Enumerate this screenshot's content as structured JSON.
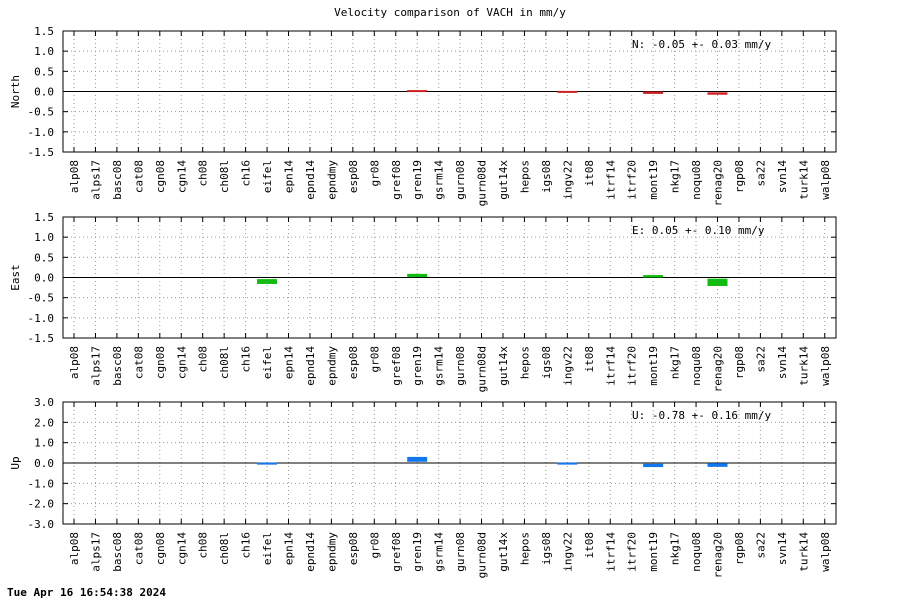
{
  "chart_data": {
    "title": "Velocity comparison of VACH in mm/y",
    "footer": "Tue Apr 16 16:54:38 2024",
    "type": "bar",
    "categories": [
      "alp08",
      "alps17",
      "basc08",
      "cat08",
      "cgn08",
      "cgn14",
      "ch08",
      "ch08l",
      "ch16",
      "eifel",
      "epn14",
      "epnd14",
      "epndmy",
      "esp08",
      "gr08",
      "gref08",
      "gren19",
      "gsrm14",
      "gurn08",
      "gurn08d",
      "gut14x",
      "hepos",
      "igs08",
      "ingv22",
      "it08",
      "itrf14",
      "itrf20",
      "mont19",
      "nkg17",
      "noqu08",
      "renag20",
      "rgp08",
      "sa22",
      "svn14",
      "turk14",
      "walp08"
    ],
    "grid": true,
    "panels": [
      {
        "ylabel": "North",
        "ylim": [
          -1.5,
          1.5
        ],
        "yticks": [
          -1.5,
          -1.0,
          -0.5,
          0.0,
          0.5,
          1.0,
          1.5
        ],
        "tick_labels": [
          "-1.5",
          "-1.0",
          "-0.5",
          "0.0",
          "0.5",
          "1.0",
          "1.5"
        ],
        "annotation": "N:  -0.05 +-  0.03 mm/y",
        "color": "#cc2222",
        "bars": [
          {
            "category": "gren19",
            "value": 0.01,
            "sigma": 0.02
          },
          {
            "category": "ingv22",
            "value": -0.01,
            "sigma": 0.02
          },
          {
            "category": "mont19",
            "value": -0.03,
            "sigma": 0.03
          },
          {
            "category": "renag20",
            "value": -0.05,
            "sigma": 0.03
          }
        ]
      },
      {
        "ylabel": "East",
        "ylim": [
          -1.5,
          1.5
        ],
        "yticks": [
          -1.5,
          -1.0,
          -0.5,
          0.0,
          0.5,
          1.0,
          1.5
        ],
        "tick_labels": [
          "-1.5",
          "-1.0",
          "-0.5",
          "0.0",
          "0.5",
          "1.0",
          "1.5"
        ],
        "annotation": "E:   0.05 +-  0.10 mm/y",
        "color": "#11bb11",
        "bars": [
          {
            "category": "eifel",
            "value": -0.1,
            "sigma": 0.06
          },
          {
            "category": "gren19",
            "value": 0.05,
            "sigma": 0.04
          },
          {
            "category": "mont19",
            "value": 0.03,
            "sigma": 0.03
          },
          {
            "category": "renag20",
            "value": -0.12,
            "sigma": 0.09
          }
        ]
      },
      {
        "ylabel": "Up",
        "ylim": [
          -3.0,
          3.0
        ],
        "yticks": [
          -3.0,
          -2.0,
          -1.0,
          0.0,
          1.0,
          2.0,
          3.0
        ],
        "tick_labels": [
          "-3.0",
          "-2.0",
          "-1.0",
          "0.0",
          "1.0",
          "2.0",
          "3.0"
        ],
        "annotation": "U:  -0.78 +-  0.16 mm/y",
        "color": "#1177ee",
        "bars": [
          {
            "category": "eifel",
            "value": -0.03,
            "sigma": 0.03
          },
          {
            "category": "gren19",
            "value": 0.18,
            "sigma": 0.12
          },
          {
            "category": "ingv22",
            "value": -0.03,
            "sigma": 0.03
          },
          {
            "category": "mont19",
            "value": -0.12,
            "sigma": 0.08
          },
          {
            "category": "renag20",
            "value": -0.1,
            "sigma": 0.09
          }
        ]
      }
    ]
  }
}
